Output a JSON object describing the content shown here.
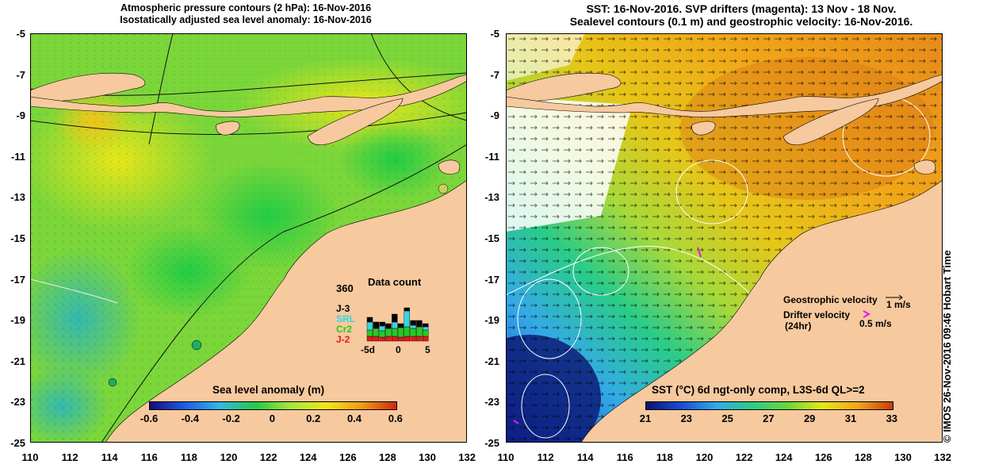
{
  "left_panel": {
    "title_line1": "Atmospheric pressure contours (2 hPa): 16-Nov-2016",
    "title_line2": "Isostatically adjusted sea level anomaly: 16-Nov-2016",
    "colorbar_title": "Sea level anomaly (m)",
    "colorbar_ticks": [
      "-0.6",
      "-0.4",
      "-0.2",
      "0",
      "0.2",
      "0.4",
      "0.6"
    ],
    "data_count": {
      "title": "Data count",
      "max_label": "360",
      "satellites": [
        {
          "name": "J-3",
          "color": "#000000"
        },
        {
          "name": "SRL",
          "color": "#33d6e6"
        },
        {
          "name": "Cr2",
          "color": "#22cc22"
        },
        {
          "name": "J-2",
          "color": "#e61919"
        }
      ],
      "xticks": [
        "-5d",
        "0",
        "5"
      ]
    }
  },
  "right_panel": {
    "title_line1": "SST: 16-Nov-2016. SVP drifters (magenta): 13 Nov - 18 Nov.",
    "title_line2": "Sealevel contours (0.1 m) and geostrophic velocity: 16-Nov-2016.",
    "colorbar_title": "SST (°C) 6d ngt-only comp, L3S-6d QL>=2",
    "colorbar_ticks": [
      "21",
      "23",
      "25",
      "27",
      "29",
      "31",
      "33"
    ],
    "legend": {
      "geostrophic_label": "Geostrophic velocity",
      "geostrophic_scale": "1 m/s",
      "drifter_label_1": "Drifter velocity",
      "drifter_label_2": "(24hr)",
      "drifter_scale": "0.5 m/s"
    },
    "credit": "© IMOS 26-Nov-2016 09:46 Hobart Time"
  },
  "axes": {
    "y_ticks": [
      "-5",
      "-7",
      "-9",
      "-11",
      "-13",
      "-15",
      "-17",
      "-19",
      "-21",
      "-23",
      "-25"
    ],
    "x_ticks": [
      "110",
      "112",
      "114",
      "116",
      "118",
      "120",
      "122",
      "124",
      "126",
      "128",
      "130",
      "132"
    ]
  },
  "colors": {
    "land": "#f7c99e",
    "sla_colormap": [
      "#1a0a80",
      "#1f5ce6",
      "#33b8e6",
      "#22cc44",
      "#a6e63a",
      "#f2e619",
      "#f29c19",
      "#cc2a0a"
    ],
    "sst_colormap": [
      "#0a1470",
      "#1a4cd9",
      "#33aae6",
      "#2acc88",
      "#66d93a",
      "#e6e619",
      "#f2a619",
      "#cc3a0a"
    ]
  }
}
